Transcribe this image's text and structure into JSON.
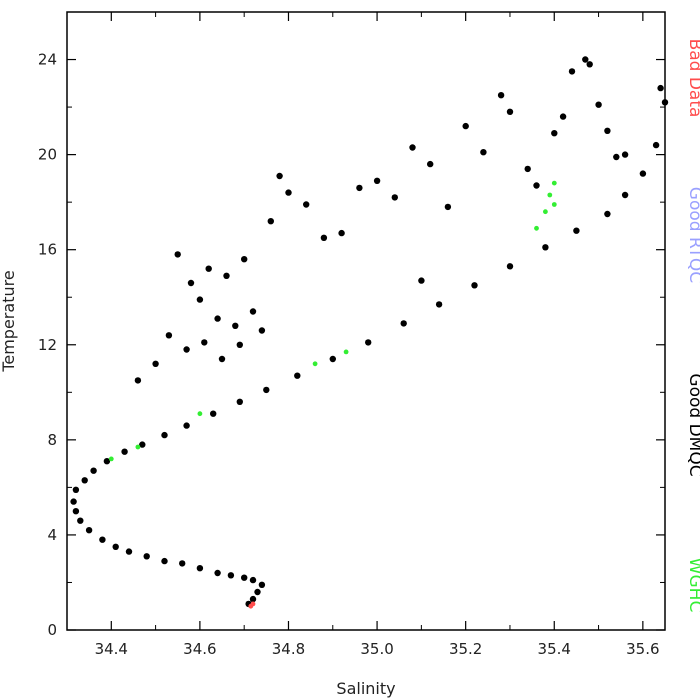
{
  "chart_data": {
    "type": "scatter",
    "xlabel": "Salinity",
    "ylabel": "Temperature",
    "xlim": [
      34.3,
      35.65
    ],
    "ylim": [
      0,
      26
    ],
    "x_ticks": [
      "34.4",
      "34.6",
      "34.8",
      "35.0",
      "35.2",
      "35.4",
      "35.6"
    ],
    "x_tick_values": [
      34.4,
      34.6,
      34.8,
      35.0,
      35.2,
      35.4,
      35.6
    ],
    "y_ticks": [
      "0",
      "4",
      "8",
      "12",
      "16",
      "20",
      "24"
    ],
    "y_tick_values": [
      0,
      4,
      8,
      12,
      16,
      20,
      24
    ],
    "grid": false,
    "legend_placement": "right, vertical",
    "series": [
      {
        "name": "Bad Data",
        "color": "#ff4d4d",
        "points": [
          [
            34.715,
            1.0
          ],
          [
            34.72,
            1.1
          ]
        ]
      },
      {
        "name": "Good RTQC",
        "color": "#9aa0ff",
        "points": []
      },
      {
        "name": "Good DMQC",
        "color": "#000000",
        "points": [
          [
            34.71,
            1.1
          ],
          [
            34.72,
            1.3
          ],
          [
            34.73,
            1.6
          ],
          [
            34.74,
            1.9
          ],
          [
            34.72,
            2.1
          ],
          [
            34.7,
            2.2
          ],
          [
            34.67,
            2.3
          ],
          [
            34.64,
            2.4
          ],
          [
            34.6,
            2.6
          ],
          [
            34.56,
            2.8
          ],
          [
            34.52,
            2.9
          ],
          [
            34.48,
            3.1
          ],
          [
            34.44,
            3.3
          ],
          [
            34.41,
            3.5
          ],
          [
            34.38,
            3.8
          ],
          [
            34.35,
            4.2
          ],
          [
            34.33,
            4.6
          ],
          [
            34.32,
            5.0
          ],
          [
            34.315,
            5.4
          ],
          [
            34.32,
            5.9
          ],
          [
            34.34,
            6.3
          ],
          [
            34.36,
            6.7
          ],
          [
            34.39,
            7.1
          ],
          [
            34.43,
            7.5
          ],
          [
            34.47,
            7.8
          ],
          [
            34.52,
            8.2
          ],
          [
            34.57,
            8.6
          ],
          [
            34.63,
            9.1
          ],
          [
            34.69,
            9.6
          ],
          [
            34.75,
            10.1
          ],
          [
            34.82,
            10.7
          ],
          [
            34.9,
            11.4
          ],
          [
            34.98,
            12.1
          ],
          [
            35.06,
            12.9
          ],
          [
            35.14,
            13.7
          ],
          [
            35.22,
            14.5
          ],
          [
            35.3,
            15.3
          ],
          [
            35.38,
            16.1
          ],
          [
            35.45,
            16.8
          ],
          [
            35.52,
            17.5
          ],
          [
            35.56,
            18.3
          ],
          [
            35.6,
            19.2
          ],
          [
            35.63,
            20.4
          ],
          [
            35.65,
            22.2
          ],
          [
            35.64,
            22.8
          ],
          [
            34.55,
            15.8
          ],
          [
            34.58,
            14.6
          ],
          [
            34.6,
            13.9
          ],
          [
            34.62,
            15.2
          ],
          [
            34.64,
            13.1
          ],
          [
            34.66,
            14.9
          ],
          [
            34.68,
            12.8
          ],
          [
            34.7,
            15.6
          ],
          [
            34.72,
            13.4
          ],
          [
            34.74,
            12.6
          ],
          [
            34.76,
            17.2
          ],
          [
            34.78,
            19.1
          ],
          [
            34.8,
            18.4
          ],
          [
            34.84,
            17.9
          ],
          [
            34.88,
            16.5
          ],
          [
            34.92,
            16.7
          ],
          [
            34.96,
            18.6
          ],
          [
            35.0,
            18.9
          ],
          [
            35.04,
            18.2
          ],
          [
            35.08,
            20.3
          ],
          [
            35.1,
            14.7
          ],
          [
            35.12,
            19.6
          ],
          [
            35.16,
            17.8
          ],
          [
            35.2,
            21.2
          ],
          [
            35.24,
            20.1
          ],
          [
            35.28,
            22.5
          ],
          [
            35.3,
            21.8
          ],
          [
            35.34,
            19.4
          ],
          [
            35.36,
            18.7
          ],
          [
            35.4,
            20.9
          ],
          [
            35.42,
            21.6
          ],
          [
            35.44,
            23.5
          ],
          [
            35.47,
            24.0
          ],
          [
            35.48,
            23.8
          ],
          [
            35.5,
            22.1
          ],
          [
            35.52,
            21.0
          ],
          [
            35.54,
            19.9
          ],
          [
            35.56,
            20.0
          ],
          [
            34.46,
            10.5
          ],
          [
            34.5,
            11.2
          ],
          [
            34.53,
            12.4
          ],
          [
            34.57,
            11.8
          ],
          [
            34.61,
            12.1
          ],
          [
            34.65,
            11.4
          ],
          [
            34.69,
            12.0
          ]
        ]
      },
      {
        "name": "WGHC",
        "color": "#33ee33",
        "points": [
          [
            34.4,
            7.2
          ],
          [
            34.46,
            7.7
          ],
          [
            34.6,
            9.1
          ],
          [
            34.86,
            11.2
          ],
          [
            34.93,
            11.7
          ],
          [
            35.36,
            16.9
          ],
          [
            35.38,
            17.6
          ],
          [
            35.39,
            18.3
          ],
          [
            35.4,
            18.8
          ],
          [
            35.4,
            17.9
          ]
        ]
      }
    ]
  }
}
